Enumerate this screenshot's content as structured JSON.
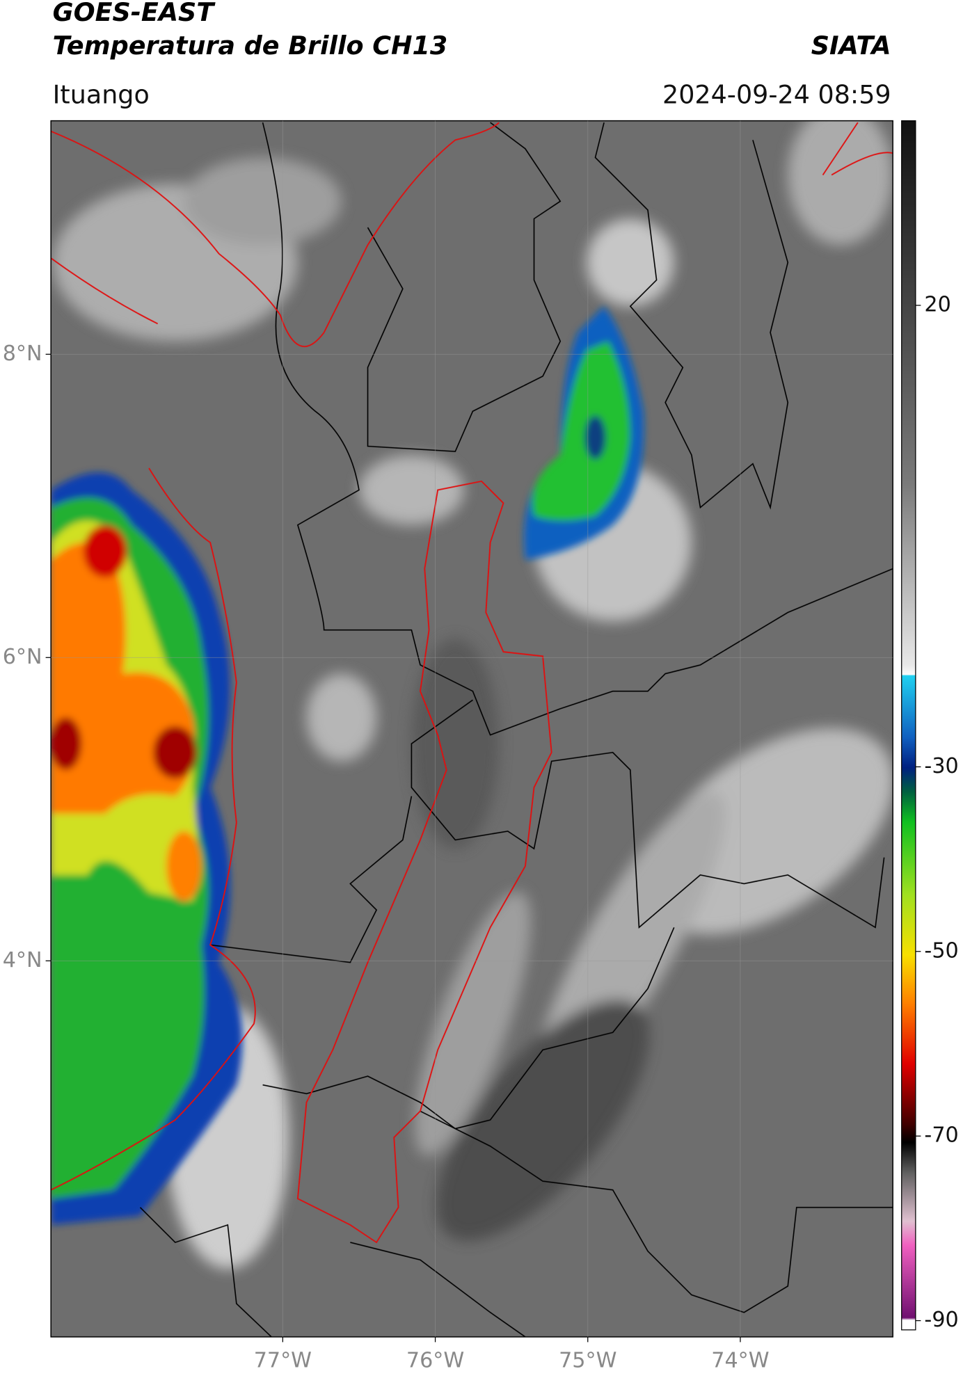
{
  "map": {
    "title_line1": "GOES-EAST",
    "title_line2": "Temperatura de Brillo CH13",
    "agency": "SIATA",
    "region": "Ituango",
    "datetime": "2024-09-24 08:59",
    "lon_lim": [
      -78.52,
      -73.0
    ],
    "lat_lim": [
      1.52,
      9.54
    ],
    "lat_ticks": [
      {
        "value": 8,
        "label": "8°N"
      },
      {
        "value": 6,
        "label": "6°N"
      },
      {
        "value": 4,
        "label": "4°N"
      }
    ],
    "lon_ticks": [
      {
        "value": -77,
        "label": "77°W"
      },
      {
        "value": -76,
        "label": "76°W"
      },
      {
        "value": -75,
        "label": "75°W"
      },
      {
        "value": -74,
        "label": "74°W"
      }
    ],
    "colorbar": {
      "range": [
        -91,
        40
      ],
      "ticks": [
        20,
        -30,
        -50,
        -70,
        -90
      ]
    }
  }
}
